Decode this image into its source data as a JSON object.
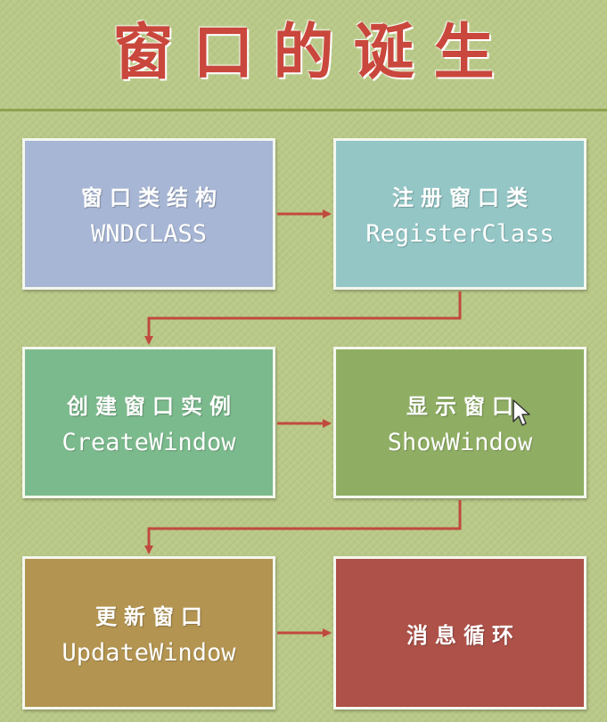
{
  "title": "窗口的诞生",
  "steps": [
    {
      "cn": "窗口类结构",
      "en": "WNDCLASS",
      "color": "#a7b6d4"
    },
    {
      "cn": "注册窗口类",
      "en": "RegisterClass",
      "color": "#94c6c6"
    },
    {
      "cn": "创建窗口实例",
      "en": "CreateWindow",
      "color": "#7bba8c"
    },
    {
      "cn": "显示窗口",
      "en": "ShowWindow",
      "color": "#8fae63"
    },
    {
      "cn": "更新窗口",
      "en": "UpdateWindow",
      "color": "#b39450"
    },
    {
      "cn": "消息循环",
      "color": "#ad5149"
    }
  ],
  "arrow_color": "#c04a3f",
  "cursor_icon": "mouse-pointer-icon"
}
